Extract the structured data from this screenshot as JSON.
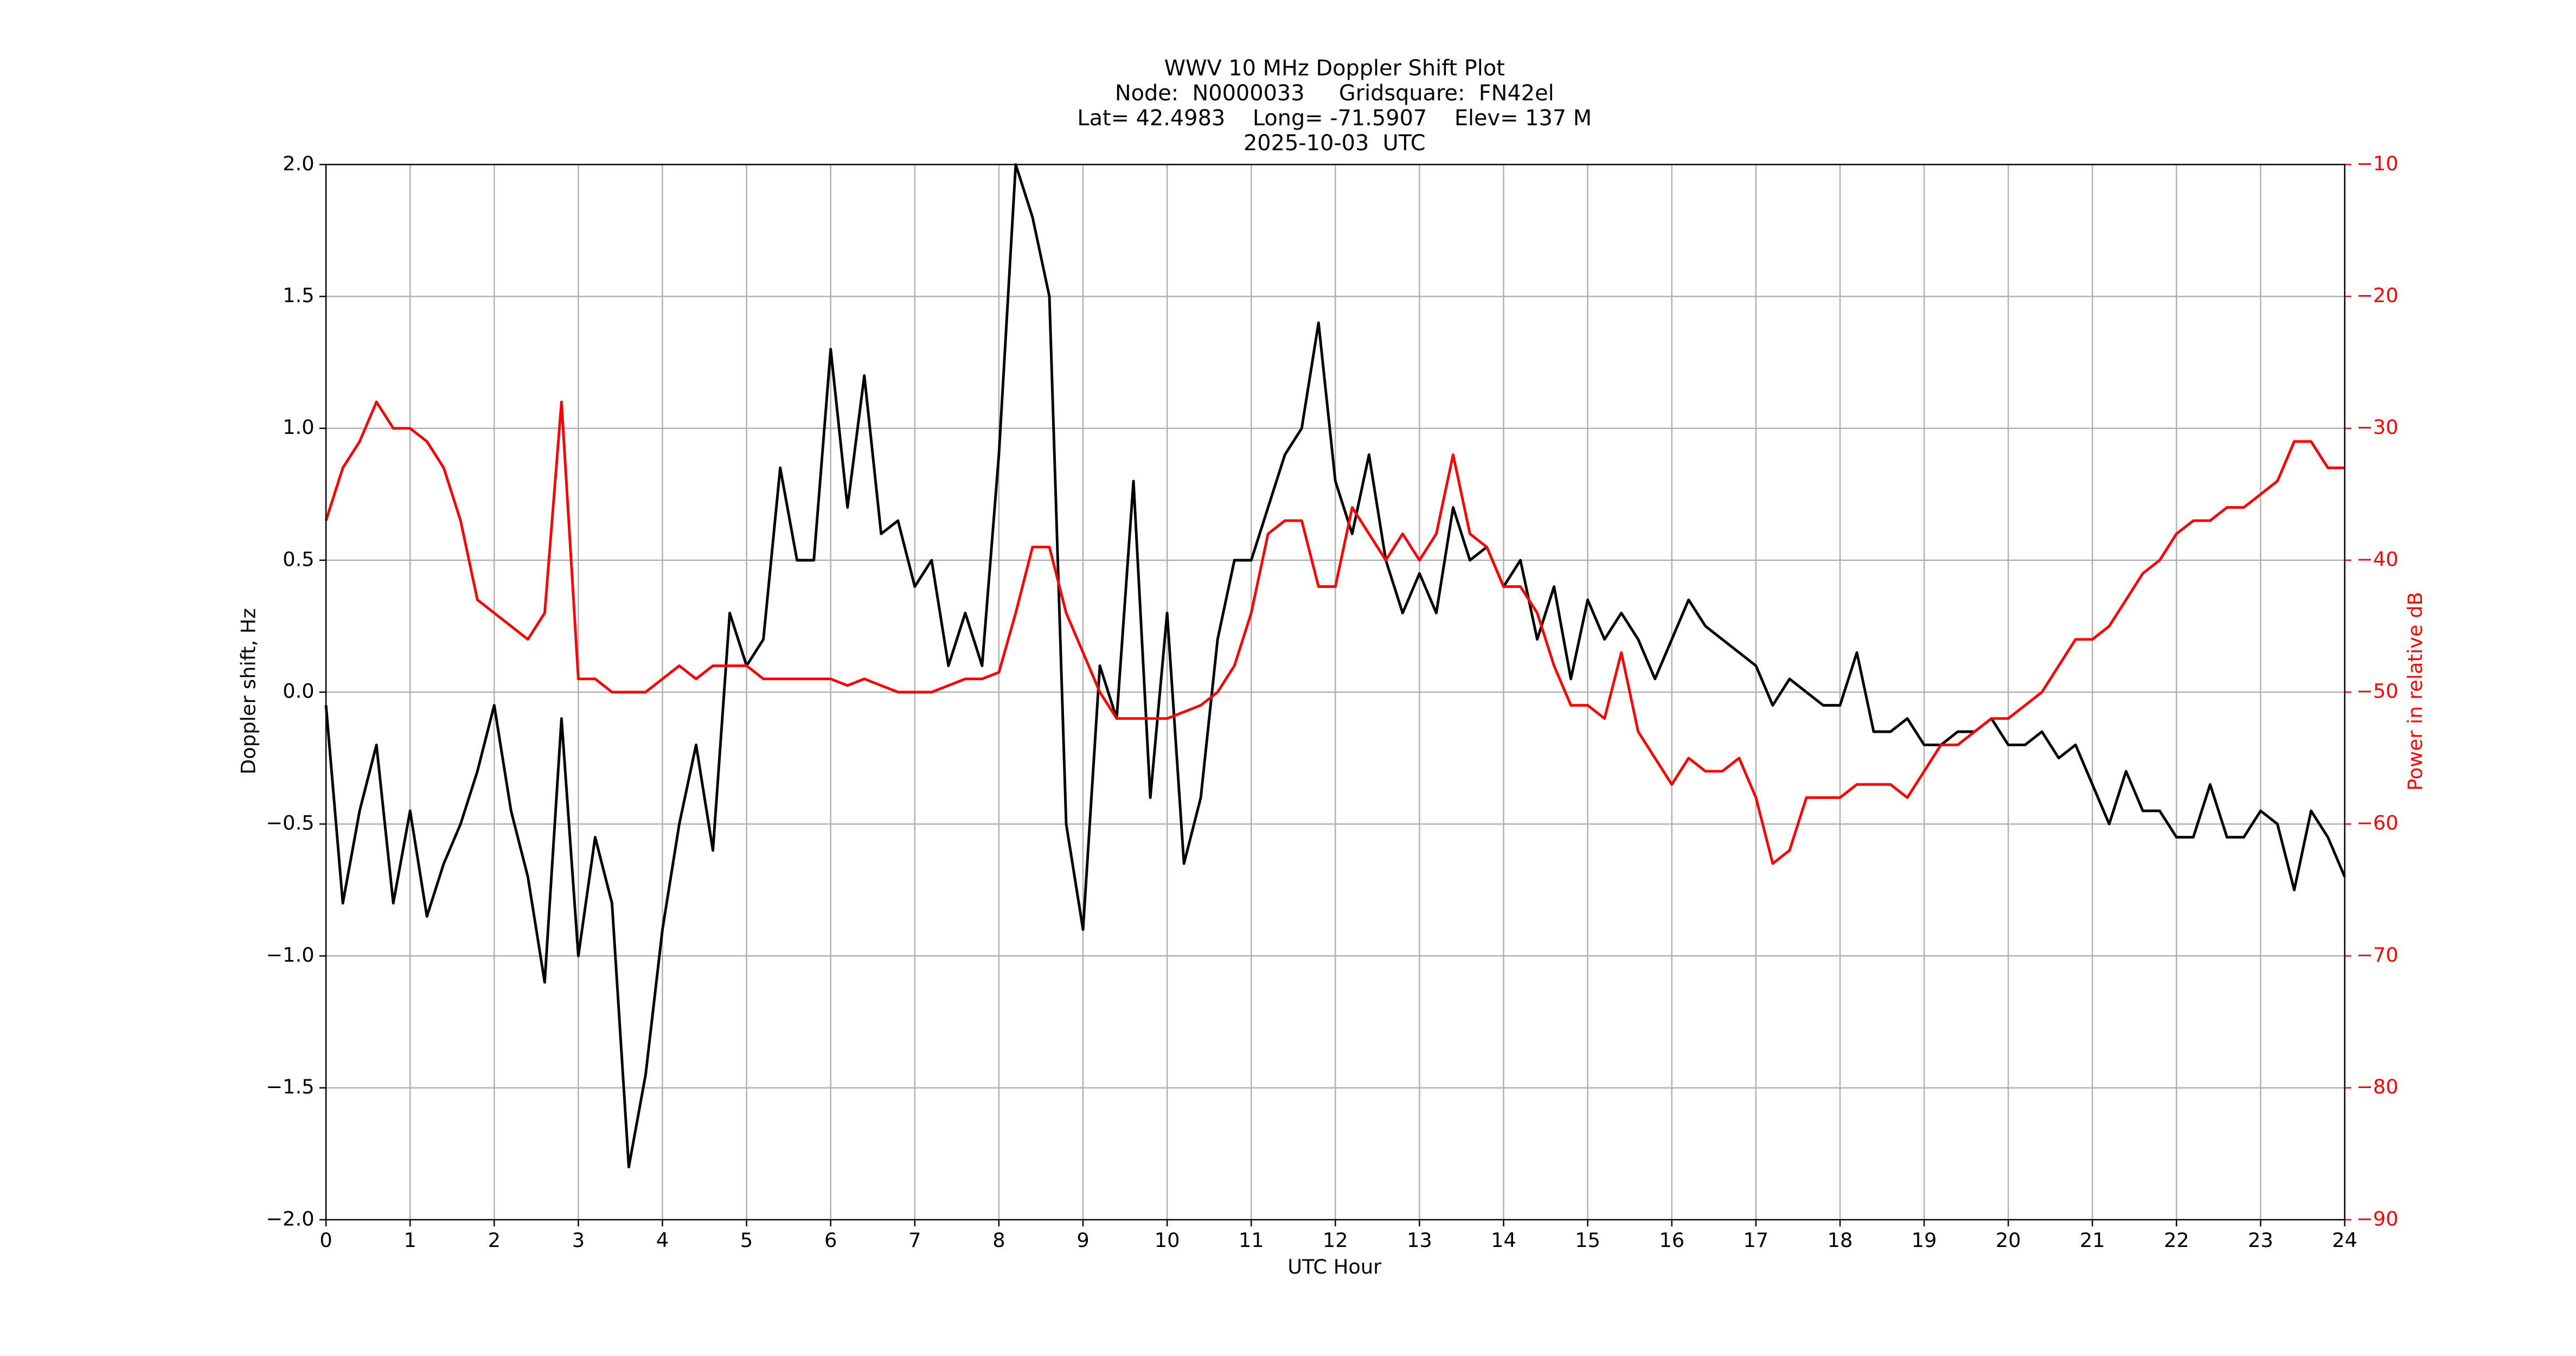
{
  "chart_data": {
    "type": "line",
    "title": [
      "WWV 10 MHz Doppler Shift Plot",
      "Node:  N0000033     Gridsquare:  FN42el",
      "Lat= 42.4983    Long= -71.5907    Elev= 137 M",
      "2025-10-03  UTC"
    ],
    "xlabel": "UTC Hour",
    "ylabel": "Doppler shift, Hz",
    "y2label": "Power in relative dB",
    "x": [
      0,
      0.2,
      0.4,
      0.6,
      0.8,
      1,
      1.2,
      1.4,
      1.6,
      1.8,
      2,
      2.2,
      2.4,
      2.6,
      2.8,
      3,
      3.2,
      3.4,
      3.6,
      3.8,
      4,
      4.2,
      4.4,
      4.6,
      4.8,
      5,
      5.2,
      5.4,
      5.6,
      5.8,
      6,
      6.2,
      6.4,
      6.6,
      6.8,
      7,
      7.2,
      7.4,
      7.6,
      7.8,
      8,
      8.2,
      8.4,
      8.6,
      8.8,
      9,
      9.2,
      9.4,
      9.6,
      9.8,
      10,
      10.2,
      10.4,
      10.6,
      10.8,
      11,
      11.2,
      11.4,
      11.6,
      11.8,
      12,
      12.2,
      12.4,
      12.6,
      12.8,
      13,
      13.2,
      13.4,
      13.6,
      13.8,
      14,
      14.2,
      14.4,
      14.6,
      14.8,
      15,
      15.2,
      15.4,
      15.6,
      15.8,
      16,
      16.2,
      16.4,
      16.6,
      16.8,
      17,
      17.2,
      17.4,
      17.6,
      17.8,
      18,
      18.2,
      18.4,
      18.6,
      18.8,
      19,
      19.2,
      19.4,
      19.6,
      19.8,
      20,
      20.2,
      20.4,
      20.6,
      20.8,
      21,
      21.2,
      21.4,
      21.6,
      21.8,
      22,
      22.2,
      22.4,
      22.6,
      22.8,
      23,
      23.2,
      23.4,
      23.6,
      23.8,
      24
    ],
    "series": [
      {
        "color": "#000000",
        "axis": "y",
        "values": [
          -0.05,
          -0.8,
          -0.45,
          -0.2,
          -0.8,
          -0.45,
          -0.85,
          -0.65,
          -0.5,
          -0.3,
          -0.05,
          -0.45,
          -0.7,
          -1.1,
          -0.1,
          -1.0,
          -0.55,
          -0.8,
          -1.8,
          -1.45,
          -0.9,
          -0.5,
          -0.2,
          -0.6,
          0.3,
          0.1,
          0.2,
          0.85,
          0.5,
          0.5,
          1.3,
          0.7,
          1.2,
          0.6,
          0.65,
          0.4,
          0.5,
          0.1,
          0.3,
          0.1,
          0.9,
          2.0,
          1.8,
          1.5,
          -0.5,
          -0.9,
          0.1,
          -0.1,
          0.8,
          -0.4,
          0.3,
          -0.65,
          -0.4,
          0.2,
          0.5,
          0.5,
          0.7,
          0.9,
          1.0,
          1.4,
          0.8,
          0.6,
          0.9,
          0.5,
          0.3,
          0.45,
          0.3,
          0.7,
          0.5,
          0.55,
          0.4,
          0.5,
          0.2,
          0.4,
          0.05,
          0.35,
          0.2,
          0.3,
          0.2,
          0.05,
          0.2,
          0.35,
          0.25,
          0.2,
          0.15,
          0.1,
          -0.05,
          0.05,
          0.0,
          -0.05,
          -0.05,
          0.15,
          -0.15,
          -0.15,
          -0.1,
          -0.2,
          -0.2,
          -0.15,
          -0.15,
          -0.1,
          -0.2,
          -0.2,
          -0.15,
          -0.25,
          -0.2,
          -0.35,
          -0.5,
          -0.3,
          -0.45,
          -0.45,
          -0.55,
          -0.55,
          -0.35,
          -0.55,
          -0.55,
          -0.45,
          -0.5,
          -0.75,
          -0.45,
          -0.55,
          -0.7
        ]
      },
      {
        "color": "#ff0000",
        "axis": "y2",
        "values": [
          -37,
          -33,
          -31,
          -28,
          -30,
          -30,
          -31,
          -33,
          -37,
          -43,
          -44,
          -45,
          -46,
          -44,
          -28,
          -49,
          -49,
          -50,
          -50,
          -50,
          -49,
          -48,
          -49,
          -48,
          -48,
          -48,
          -49,
          -49,
          -49,
          -49,
          -49,
          -49.5,
          -49,
          -49.5,
          -50,
          -50,
          -50,
          -49.5,
          -49,
          -49,
          -48.5,
          -44,
          -39,
          -39,
          -44,
          -47,
          -50,
          -52,
          -52,
          -52,
          -52,
          -51.5,
          -51,
          -50,
          -48,
          -44,
          -38,
          -37,
          -37,
          -42,
          -42,
          -36,
          -38,
          -40,
          -38,
          -40,
          -38,
          -32,
          -38,
          -39,
          -42,
          -42,
          -44,
          -48,
          -51,
          -51,
          -52,
          -47,
          -53,
          -55,
          -57,
          -55,
          -56,
          -56,
          -55,
          -58,
          -63,
          -62,
          -58,
          -58,
          -58,
          -57,
          -57,
          -57,
          -58,
          -56,
          -54,
          -54,
          -53,
          -52,
          -52,
          -51,
          -50,
          -48,
          -46,
          -46,
          -45,
          -43,
          -41,
          -40,
          -38,
          -37,
          -37,
          -36,
          -36,
          -35,
          -34,
          -31,
          -31,
          -33,
          -33
        ]
      }
    ],
    "xlim": [
      0,
      24
    ],
    "xticks": [
      0,
      1,
      2,
      3,
      4,
      5,
      6,
      7,
      8,
      9,
      10,
      11,
      12,
      13,
      14,
      15,
      16,
      17,
      18,
      19,
      20,
      21,
      22,
      23,
      24
    ],
    "ylim": [
      -2,
      2
    ],
    "yticks": [
      {
        "value": -2,
        "label": "−2.0"
      },
      {
        "value": -1.5,
        "label": "−1.5"
      },
      {
        "value": -1,
        "label": "−1.0"
      },
      {
        "value": -0.5,
        "label": "−0.5"
      },
      {
        "value": 0,
        "label": "0.0"
      },
      {
        "value": 0.5,
        "label": "0.5"
      },
      {
        "value": 1,
        "label": "1.0"
      },
      {
        "value": 1.5,
        "label": "1.5"
      },
      {
        "value": 2,
        "label": "2.0"
      }
    ],
    "y2lim": [
      -90,
      -10
    ],
    "y2ticks": [
      {
        "value": -90,
        "label": "−90"
      },
      {
        "value": -80,
        "label": "−80"
      },
      {
        "value": -70,
        "label": "−70"
      },
      {
        "value": -60,
        "label": "−60"
      },
      {
        "value": -50,
        "label": "−50"
      },
      {
        "value": -40,
        "label": "−40"
      },
      {
        "value": -30,
        "label": "−30"
      },
      {
        "value": -20,
        "label": "−20"
      },
      {
        "value": -10,
        "label": "−10"
      }
    ],
    "y2color": "#ff0000",
    "grid": true
  }
}
